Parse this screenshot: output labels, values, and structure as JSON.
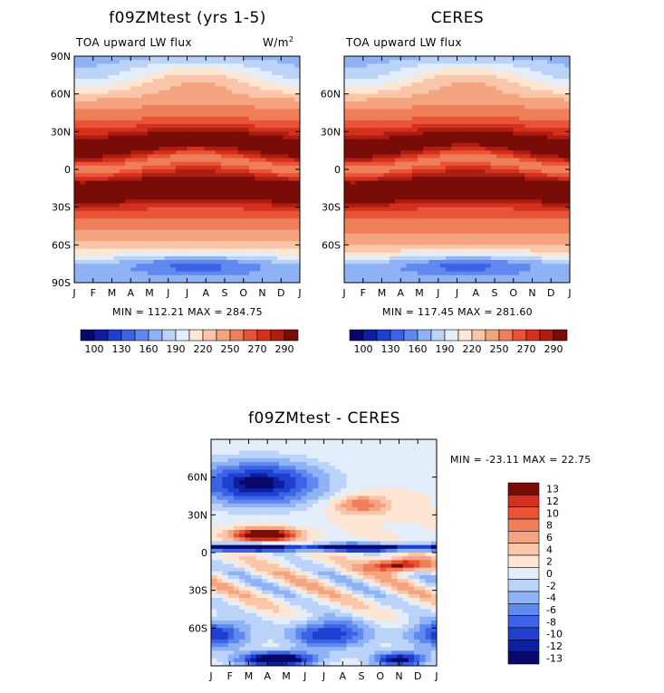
{
  "colors": {
    "main_scale": [
      "#08086b",
      "#0c1fa0",
      "#1f3fd0",
      "#3c63e6",
      "#6089f0",
      "#8eb2f5",
      "#bbd2f9",
      "#e4eefb",
      "#fde6d4",
      "#f9c6aa",
      "#f4a47f",
      "#ef7e5a",
      "#ea5436",
      "#d5301c",
      "#ae1d12",
      "#7a0c08"
    ],
    "diff_scale": [
      "#08086b",
      "#0c1fa0",
      "#1f3fd0",
      "#3c63e6",
      "#6089f0",
      "#8eb2f5",
      "#bbd2f9",
      "#e4eefb",
      "#fde6d4",
      "#f9c6aa",
      "#f4a47f",
      "#ef7e5a",
      "#ea5436",
      "#d5301c",
      "#7a0c08"
    ]
  },
  "chart_data": [
    {
      "type": "heatmap",
      "id": "model",
      "title": "f09ZMtest (yrs 1-5)",
      "subtitle_left": "TOA upward LW flux",
      "units": "W/m",
      "units_sup": "2",
      "x_tick_labels": [
        "J",
        "F",
        "M",
        "A",
        "M",
        "J",
        "J",
        "A",
        "S",
        "O",
        "N",
        "D",
        "J"
      ],
      "y_tick_labels": [
        "90N",
        "60N",
        "30N",
        "0",
        "30S",
        "60S",
        "90S"
      ],
      "ylim": [
        -90,
        90
      ],
      "stats": "MIN = 112.21 MAX = 284.75",
      "min": 112.21,
      "max": 284.75,
      "colorbar_labels": [
        "100",
        "130",
        "160",
        "190",
        "220",
        "250",
        "270",
        "290"
      ],
      "contour_levels": [
        100,
        110,
        120,
        130,
        140,
        150,
        160,
        170,
        180,
        190,
        200,
        210,
        220,
        230,
        240,
        250,
        260,
        270,
        280,
        290
      ]
    },
    {
      "type": "heatmap",
      "id": "obs",
      "title": "CERES",
      "subtitle_left": "TOA upward LW flux",
      "x_tick_labels": [
        "J",
        "F",
        "M",
        "A",
        "M",
        "J",
        "J",
        "A",
        "S",
        "O",
        "N",
        "D",
        "J"
      ],
      "y_tick_labels": [
        "60N",
        "30N",
        "0",
        "30S",
        "60S"
      ],
      "ylim": [
        -90,
        90
      ],
      "stats": "MIN = 117.45 MAX = 281.60",
      "min": 117.45,
      "max": 281.6,
      "colorbar_labels": [
        "100",
        "130",
        "160",
        "190",
        "220",
        "250",
        "270",
        "290"
      ]
    },
    {
      "type": "heatmap",
      "id": "diff",
      "title": "f09ZMtest - CERES",
      "x_tick_labels": [
        "J",
        "F",
        "M",
        "A",
        "M",
        "J",
        "J",
        "A",
        "S",
        "O",
        "N",
        "D",
        "J"
      ],
      "y_tick_labels": [
        "60N",
        "30N",
        "0",
        "30S",
        "60S"
      ],
      "ylim": [
        -90,
        90
      ],
      "stats": "MIN = -23.11 MAX =  22.75",
      "min": -23.11,
      "max": 22.75,
      "colorbar_labels": [
        "13",
        "12",
        "10",
        "8",
        "6",
        "4",
        "2",
        "0",
        "-2",
        "-4",
        "-6",
        "-8",
        "-10",
        "-12",
        "-13"
      ]
    }
  ]
}
